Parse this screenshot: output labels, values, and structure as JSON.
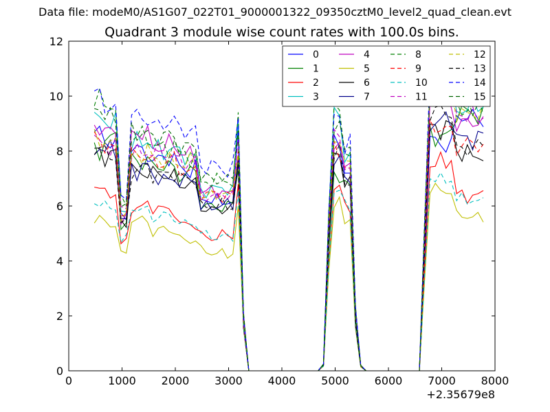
{
  "suptitle": "Data file: modeM0/AS1G07_022T01_9000001322_09350cztM0_level2_quad_clean.evt",
  "chart_data": {
    "type": "line",
    "title": "Quadrant 3 module wise count rates with 100.0s bins.",
    "xlabel": "",
    "ylabel": "",
    "x_offset_label": "+2.35679e8",
    "xlim": [
      0,
      8000
    ],
    "ylim": [
      0,
      12
    ],
    "xticks": [
      0,
      1000,
      2000,
      3000,
      4000,
      5000,
      6000,
      7000,
      8000
    ],
    "yticks": [
      0,
      2,
      4,
      6,
      8,
      10,
      12
    ],
    "grid": false,
    "legend": {
      "placement": "top-right",
      "columns": 4
    },
    "series": [
      {
        "name": "0",
        "color": "#0000ff",
        "dash": "solid",
        "base": [
          8.6,
          8.4,
          5.6,
          8.0,
          7.7,
          7.4,
          6.2,
          8.4,
          8.3,
          7.3,
          8.3,
          9.2
        ]
      },
      {
        "name": "1",
        "color": "#008000",
        "dash": "solid",
        "base": [
          8.0,
          8.5,
          5.3,
          7.7,
          7.4,
          7.2,
          6.0,
          7.4,
          7.2,
          6.7,
          8.6,
          9.4
        ]
      },
      {
        "name": "2",
        "color": "#ff0000",
        "dash": "solid",
        "base": [
          6.8,
          6.4,
          4.6,
          6.0,
          5.9,
          5.3,
          4.9,
          6.8,
          6.6,
          6.0,
          7.6,
          6.4
        ]
      },
      {
        "name": "3",
        "color": "#00bfbf",
        "dash": "solid",
        "base": [
          9.2,
          9.0,
          5.9,
          8.3,
          8.1,
          7.8,
          6.6,
          9.2,
          9.3,
          7.9,
          10.2,
          9.6
        ]
      },
      {
        "name": "4",
        "color": "#bf00bf",
        "dash": "solid",
        "base": [
          8.8,
          8.7,
          5.6,
          8.6,
          8.2,
          7.9,
          6.5,
          8.3,
          8.4,
          7.4,
          9.8,
          9.0
        ]
      },
      {
        "name": "5",
        "color": "#bfbf00",
        "dash": "solid",
        "base": [
          5.5,
          5.4,
          4.2,
          5.5,
          5.1,
          4.8,
          4.3,
          5.9,
          6.1,
          5.5,
          6.6,
          5.6
        ]
      },
      {
        "name": "6",
        "color": "#000000",
        "dash": "solid",
        "base": [
          8.0,
          7.9,
          5.4,
          7.3,
          7.1,
          6.8,
          5.9,
          7.6,
          7.9,
          6.8,
          8.9,
          7.9
        ]
      },
      {
        "name": "7",
        "color": "#00008b",
        "dash": "solid",
        "base": [
          8.2,
          8.0,
          5.5,
          7.4,
          7.0,
          6.9,
          6.0,
          7.7,
          7.7,
          6.9,
          9.1,
          8.5
        ]
      },
      {
        "name": "8",
        "color": "#008000",
        "dash": "dashed",
        "base": [
          9.9,
          9.6,
          6.2,
          8.5,
          8.2,
          7.8,
          6.9,
          9.1,
          9.4,
          8.1,
          10.4,
          9.6
        ]
      },
      {
        "name": "9",
        "color": "#ff0000",
        "dash": "dashed",
        "base": [
          8.4,
          8.1,
          5.8,
          7.8,
          7.6,
          7.3,
          6.4,
          8.0,
          8.2,
          7.3,
          8.8,
          8.2
        ]
      },
      {
        "name": "10",
        "color": "#00bfbf",
        "dash": "dashed",
        "base": [
          6.1,
          6.0,
          4.7,
          5.9,
          5.6,
          5.4,
          4.9,
          6.5,
          6.6,
          6.0,
          7.0,
          6.2
        ]
      },
      {
        "name": "11",
        "color": "#bf00bf",
        "dash": "dashed",
        "base": [
          8.4,
          8.2,
          5.9,
          8.0,
          7.9,
          7.6,
          6.4,
          8.2,
          8.5,
          7.4,
          10.0,
          9.3
        ]
      },
      {
        "name": "12",
        "color": "#bfbf00",
        "dash": "dashed",
        "base": [
          8.6,
          8.2,
          5.7,
          7.9,
          7.7,
          7.5,
          6.4,
          8.3,
          8.4,
          7.5,
          10.3,
          9.4
        ]
      },
      {
        "name": "13",
        "color": "#000000",
        "dash": "dashed",
        "base": [
          8.1,
          7.8,
          5.4,
          7.3,
          7.2,
          7.0,
          6.0,
          7.8,
          7.9,
          6.9,
          9.4,
          8.1
        ]
      },
      {
        "name": "14",
        "color": "#0000ff",
        "dash": "dashed",
        "base": [
          10.0,
          9.6,
          6.4,
          9.2,
          9.0,
          8.8,
          7.4,
          9.2,
          9.3,
          8.3,
          10.8,
          9.9
        ]
      },
      {
        "name": "15",
        "color": "#006400",
        "dash": "dashed",
        "base": [
          9.6,
          9.3,
          6.0,
          8.7,
          8.5,
          8.2,
          7.0,
          8.9,
          9.1,
          7.9,
          10.5,
          9.7
        ]
      }
    ]
  }
}
